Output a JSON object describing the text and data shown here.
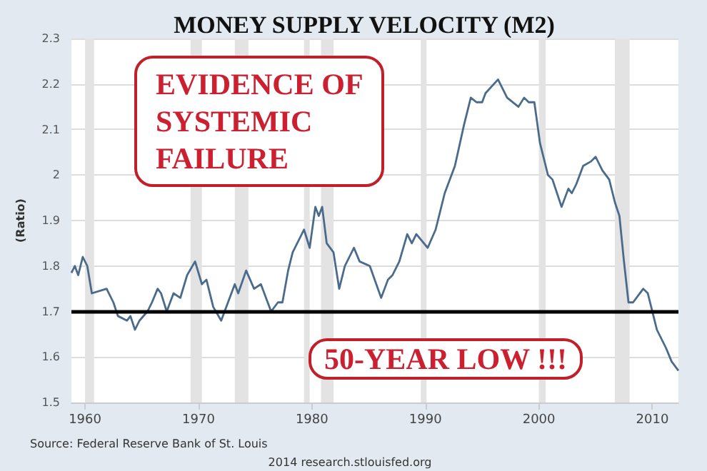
{
  "chart_data": {
    "type": "line",
    "title": "MONEY SUPPLY VELOCITY (M2)",
    "ylabel": "(Ratio)",
    "annotations": [
      "EVIDENCE OF SYSTEMIC FAILURE",
      "50-YEAR LOW !!!",
      "Source: Federal Reserve Bank of St. Louis",
      "2014 research.stlouisfed.org"
    ],
    "x": [
      1958.8,
      1959.1,
      1959.4,
      1959.8,
      1960.2,
      1960.6,
      1961.9,
      1962.5,
      1962.9,
      1963.7,
      1964.0,
      1964.4,
      1964.8,
      1965.5,
      1965.9,
      1966.4,
      1966.7,
      1967.2,
      1967.8,
      1968.4,
      1969.0,
      1969.7,
      1970.3,
      1970.7,
      1971.3,
      1972.0,
      1972.6,
      1973.2,
      1973.5,
      1974.2,
      1974.9,
      1975.5,
      1976.4,
      1977.0,
      1977.4,
      1977.9,
      1978.3,
      1979.3,
      1979.8,
      1980.3,
      1980.6,
      1980.9,
      1981.3,
      1981.9,
      1982.4,
      1982.9,
      1983.7,
      1984.2,
      1985.1,
      1986.1,
      1986.7,
      1987.1,
      1987.7,
      1988.4,
      1988.8,
      1989.2,
      1990.2,
      1990.9,
      1991.7,
      1992.6,
      1993.4,
      1994.0,
      1994.5,
      1995.0,
      1995.3,
      1996.4,
      1997.2,
      1998.2,
      1998.7,
      1999.1,
      1999.6,
      2000.1,
      2000.8,
      2001.2,
      2002.0,
      2002.6,
      2002.9,
      2003.3,
      2003.9,
      2004.6,
      2005.0,
      2005.6,
      2006.2,
      2006.7,
      2007.1,
      2007.5,
      2007.9,
      2008.3,
      2009.2,
      2009.6,
      2010.1,
      2010.4,
      2011.2,
      2011.7,
      2012.3
    ],
    "series": [
      {
        "color": "#4a6b8c",
        "values": [
          1.785,
          1.8,
          1.78,
          1.82,
          1.8,
          1.74,
          1.75,
          1.72,
          1.69,
          1.68,
          1.69,
          1.66,
          1.68,
          1.7,
          1.72,
          1.75,
          1.74,
          1.7,
          1.74,
          1.73,
          1.78,
          1.81,
          1.76,
          1.77,
          1.71,
          1.68,
          1.72,
          1.76,
          1.74,
          1.79,
          1.75,
          1.76,
          1.7,
          1.72,
          1.72,
          1.79,
          1.83,
          1.88,
          1.84,
          1.93,
          1.91,
          1.93,
          1.85,
          1.83,
          1.75,
          1.8,
          1.84,
          1.81,
          1.8,
          1.73,
          1.77,
          1.78,
          1.81,
          1.87,
          1.85,
          1.87,
          1.84,
          1.88,
          1.96,
          2.02,
          2.11,
          2.17,
          2.16,
          2.16,
          2.18,
          2.21,
          2.17,
          2.15,
          2.17,
          2.16,
          2.16,
          2.07,
          2.0,
          1.99,
          1.93,
          1.97,
          1.96,
          1.98,
          2.02,
          2.03,
          2.04,
          2.01,
          1.99,
          1.94,
          1.91,
          1.81,
          1.72,
          1.72,
          1.75,
          1.74,
          1.69,
          1.66,
          1.62,
          1.59,
          1.57
        ]
      }
    ],
    "xlim": [
      1958.8,
      2012.3
    ],
    "xticks": [
      1960,
      1970,
      1980,
      1990,
      2000,
      2010
    ],
    "ylim": [
      1.5,
      2.3
    ],
    "yticks": [
      1.5,
      1.6,
      1.7,
      1.8,
      1.9,
      2.0,
      2.1,
      2.2,
      2.3
    ],
    "ref_lines": [
      {
        "axis": "y",
        "value": 1.7,
        "color": "#000000"
      }
    ],
    "bands": [
      {
        "axis": "x",
        "from": 1960.0,
        "to": 1960.8,
        "color": "#e3e3e3"
      },
      {
        "axis": "x",
        "from": 1969.3,
        "to": 1970.3,
        "color": "#e3e3e3"
      },
      {
        "axis": "x",
        "from": 1973.2,
        "to": 1974.4,
        "color": "#e3e3e3"
      },
      {
        "axis": "x",
        "from": 1979.3,
        "to": 1979.8,
        "color": "#e3e3e3"
      },
      {
        "axis": "x",
        "from": 1980.8,
        "to": 1981.9,
        "color": "#e3e3e3"
      },
      {
        "axis": "x",
        "from": 1989.6,
        "to": 1990.1,
        "color": "#e3e3e3"
      },
      {
        "axis": "x",
        "from": 2000.0,
        "to": 2000.6,
        "color": "#e3e3e3"
      },
      {
        "axis": "x",
        "from": 2006.7,
        "to": 2008.0,
        "color": "#e3e3e3"
      }
    ],
    "grid": "y",
    "marker": "none",
    "line_style": "solid"
  }
}
